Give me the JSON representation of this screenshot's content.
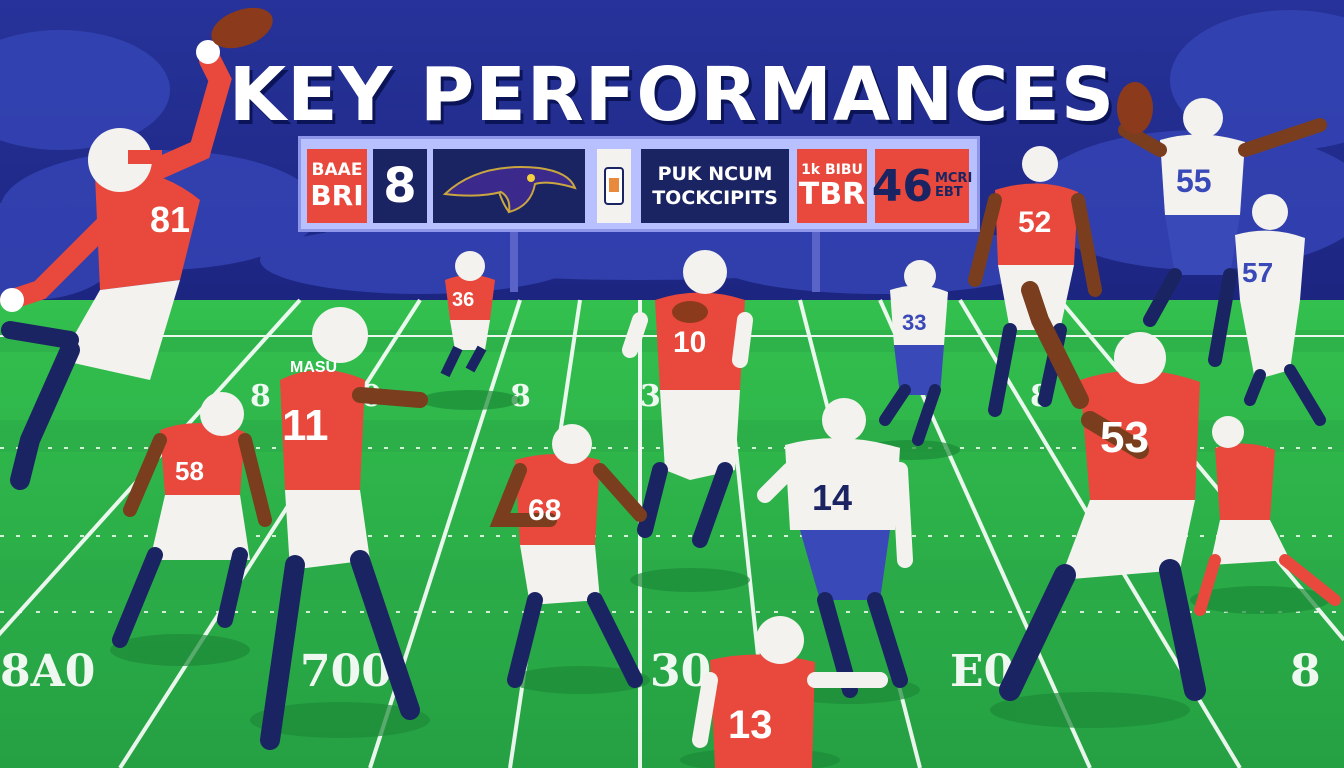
{
  "title": "KEY PERFORMANCES",
  "scoreboard": {
    "home_abbr_top": "BAAE",
    "home_abbr_bottom": "BRI",
    "home_score": "8",
    "logo_icon": "raven-head-logo",
    "center_top": "PUK NCUM",
    "center_bottom": "TOCKCIPITS",
    "away_abbr_top": "1k BIBU",
    "away_abbr_bottom": "TBR",
    "away_score": "46",
    "away_side_top": "MCRI",
    "away_side_bottom": "EBT"
  },
  "yard_numbers_mid": [
    "8",
    "00",
    "8",
    "300",
    "8"
  ],
  "yard_numbers_low": [
    "8A0",
    "700",
    "30",
    "E0",
    "8"
  ],
  "players": [
    {
      "number": "81"
    },
    {
      "number": "36"
    },
    {
      "number": "10"
    },
    {
      "number": "33"
    },
    {
      "number": "52"
    },
    {
      "number": "55"
    },
    {
      "number": "57"
    },
    {
      "number": "11",
      "name": "MASU"
    },
    {
      "number": "58"
    },
    {
      "number": "68"
    },
    {
      "number": "14"
    },
    {
      "number": "53"
    },
    {
      "number": "13"
    }
  ],
  "colors": {
    "sky": "#1f2a8c",
    "field": "#2eb24a",
    "jersey_red": "#e8493c",
    "navy": "#1b2462",
    "white": "#f4f2ef"
  }
}
